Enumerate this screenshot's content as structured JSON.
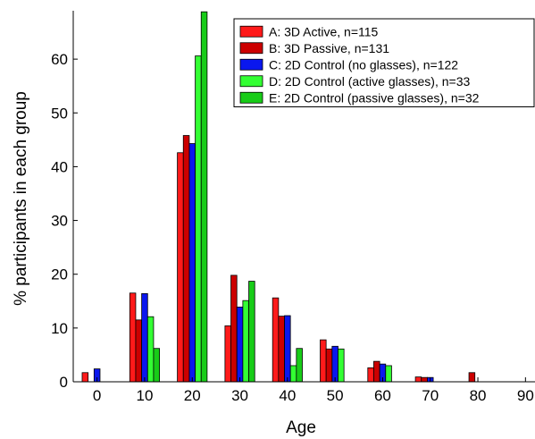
{
  "chart_data": {
    "type": "bar",
    "xlabel": "Age",
    "ylabel": "% participants in each group",
    "xlim": [
      -5,
      92
    ],
    "ylim": [
      0,
      69
    ],
    "xticks": [
      0,
      10,
      20,
      30,
      40,
      50,
      60,
      70,
      80,
      90
    ],
    "yticks": [
      0,
      10,
      20,
      30,
      40,
      50,
      60
    ],
    "categories": [
      0,
      10,
      20,
      30,
      40,
      50,
      60,
      70,
      80
    ],
    "legend_position": "top-right",
    "series": [
      {
        "name": "A: 3D Active, n=115",
        "color": "#ff1a1a",
        "values": [
          1.7,
          16.5,
          42.6,
          10.4,
          15.6,
          7.8,
          2.6,
          0.9,
          0
        ]
      },
      {
        "name": "B: 3D Passive, n=131",
        "color": "#cc0000",
        "values": [
          0,
          11.5,
          45.8,
          19.8,
          12.2,
          6.1,
          3.8,
          0.8,
          1.7
        ]
      },
      {
        "name": "C: 2D Control (no glasses), n=122",
        "color": "#0a17ee",
        "values": [
          2.4,
          16.4,
          44.3,
          13.9,
          12.3,
          6.6,
          3.3,
          0.8,
          0
        ]
      },
      {
        "name": "D: 2D Control (active glasses), n=33",
        "color": "#33ff33",
        "values": [
          0,
          12.1,
          60.6,
          15.1,
          3.0,
          6.1,
          3.0,
          0,
          0
        ]
      },
      {
        "name": "E: 2D Control (passive glasses), n=32",
        "color": "#18cc18",
        "values": [
          0,
          6.2,
          68.8,
          18.7,
          6.2,
          0,
          0,
          0,
          0
        ]
      }
    ]
  }
}
